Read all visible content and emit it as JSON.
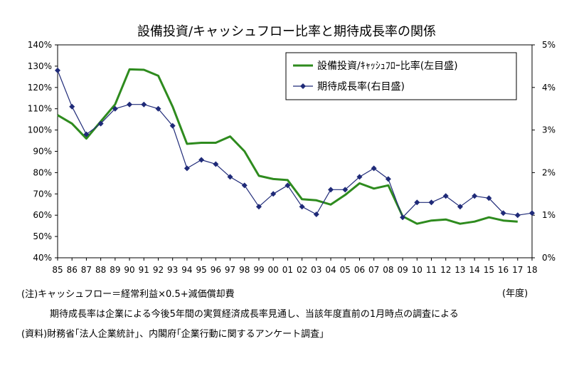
{
  "chart_data": {
    "type": "line",
    "title": "設備投資/キャッシュフロー比率と期待成長率の関係",
    "x_unit_label": "(年度)",
    "categories": [
      "85",
      "86",
      "87",
      "88",
      "89",
      "90",
      "91",
      "92",
      "93",
      "94",
      "95",
      "96",
      "97",
      "98",
      "99",
      "00",
      "01",
      "02",
      "03",
      "04",
      "05",
      "06",
      "07",
      "08",
      "09",
      "10",
      "11",
      "12",
      "13",
      "14",
      "15",
      "16",
      "17",
      "18"
    ],
    "left_axis": {
      "ticks": [
        "140%",
        "130%",
        "120%",
        "110%",
        "100%",
        "90%",
        "80%",
        "70%",
        "60%",
        "50%",
        "40%"
      ],
      "ylim": [
        40,
        140
      ]
    },
    "right_axis": {
      "ticks": [
        "5%",
        "4%",
        "3%",
        "2%",
        "1%",
        "0%"
      ],
      "ylim": [
        0,
        5
      ]
    },
    "series": [
      {
        "name": "設備投資/ｷｬｯｼｭﾌﾛｰ比率(左目盛)",
        "axis": "left",
        "color": "#2e8b1e",
        "values": [
          107,
          103,
          96,
          104,
          112,
          128.5,
          128.3,
          125.5,
          111,
          93.5,
          94,
          94,
          97,
          90,
          78.5,
          77,
          76.5,
          67.5,
          67,
          65,
          69.5,
          75,
          72.5,
          74,
          59.5,
          56,
          57.5,
          58,
          56,
          57,
          59,
          57.5,
          57,
          null
        ]
      },
      {
        "name": "期待成長率(右目盛)",
        "axis": "right",
        "color": "#1f2a78",
        "values": [
          4.4,
          3.55,
          2.9,
          3.15,
          3.5,
          3.6,
          3.6,
          3.5,
          3.1,
          2.1,
          2.3,
          2.2,
          1.9,
          1.7,
          1.2,
          1.5,
          1.7,
          1.2,
          1.02,
          1.6,
          1.6,
          1.9,
          2.1,
          1.85,
          0.95,
          1.3,
          1.3,
          1.45,
          1.2,
          1.45,
          1.4,
          1.05,
          1.0,
          1.05
        ]
      }
    ],
    "legend_position": "top-right",
    "grid": false
  },
  "notes": {
    "line1": "(注)キャッシュフロー＝経常利益×0.5+減価償却費",
    "line2": "期待成長率は企業による今後5年間の実質経済成長率見通し、当該年度直前の1月時点の調査による",
    "line3": "(資料)財務省｢法人企業統計｣、内閣府｢企業行動に関するアンケート調査」"
  }
}
